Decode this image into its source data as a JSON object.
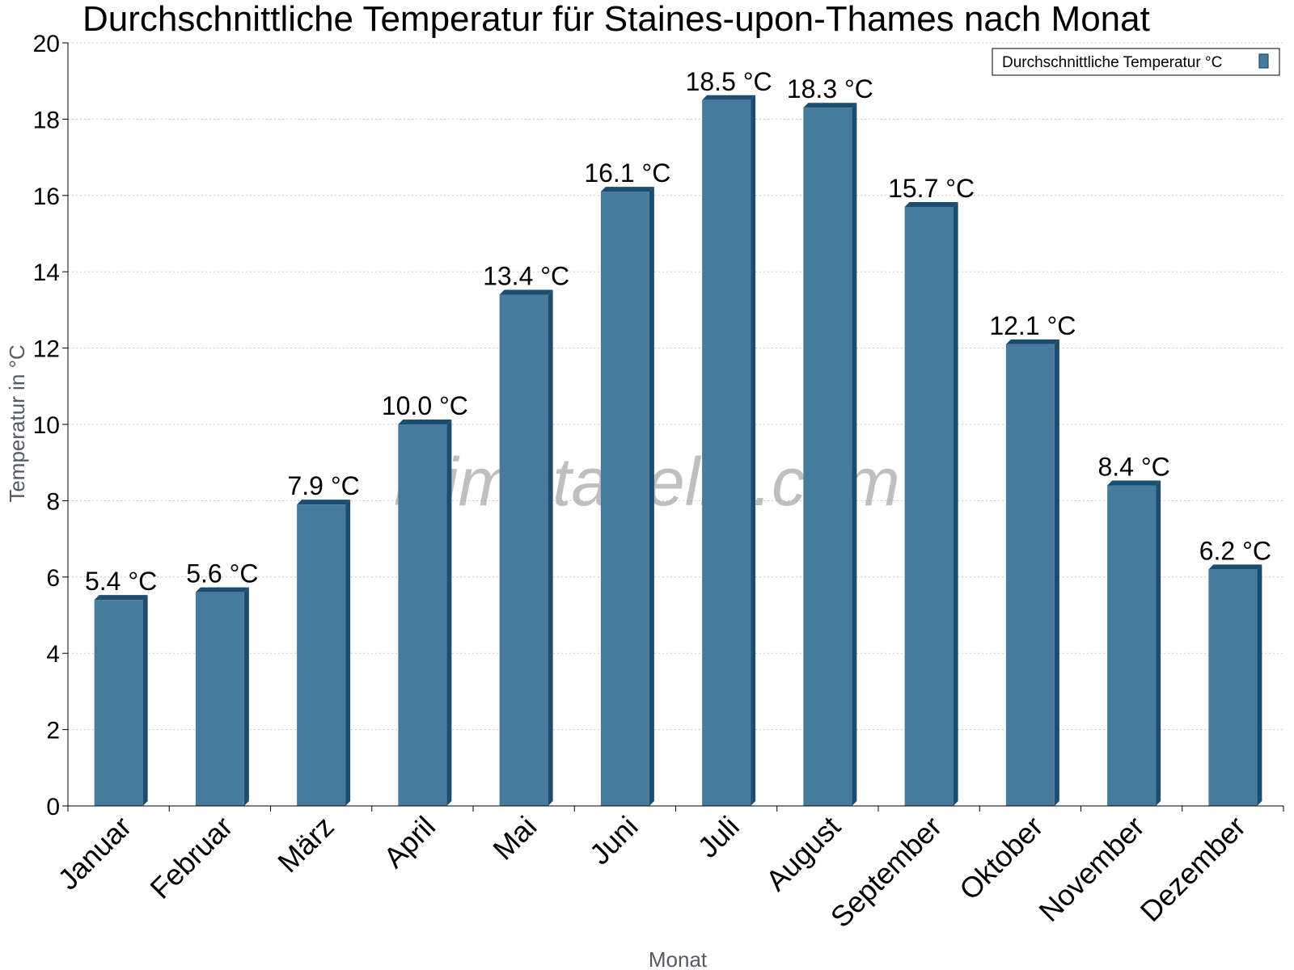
{
  "chart_data": {
    "type": "bar",
    "title": "Durchschnittliche Temperatur für Staines-upon-Thames nach Monat",
    "xlabel": "Monat",
    "ylabel": "Temperatur in °C",
    "ylim": [
      0,
      20
    ],
    "yticks": [
      0,
      2,
      4,
      6,
      8,
      10,
      12,
      14,
      16,
      18,
      20
    ],
    "grid": true,
    "legend_position": "top-right",
    "categories": [
      "Januar",
      "Februar",
      "März",
      "April",
      "Mai",
      "Juni",
      "Juli",
      "August",
      "September",
      "Oktober",
      "November",
      "Dezember"
    ],
    "series": [
      {
        "name": "Durchschnittliche Temperatur °C",
        "values": [
          5.4,
          5.6,
          7.9,
          10.0,
          13.4,
          16.1,
          18.5,
          18.3,
          15.7,
          12.1,
          8.4,
          6.2
        ],
        "labels": [
          "5.4 °C",
          "5.6 °C",
          "7.9 °C",
          "10.0 °C",
          "13.4 °C",
          "16.1 °C",
          "18.5 °C",
          "18.3 °C",
          "15.7 °C",
          "12.1 °C",
          "8.4 °C",
          "6.2 °C"
        ],
        "color": "#467b9d",
        "edge_color": "#1d4d6e"
      }
    ]
  },
  "watermark": "klimatabelle.com"
}
